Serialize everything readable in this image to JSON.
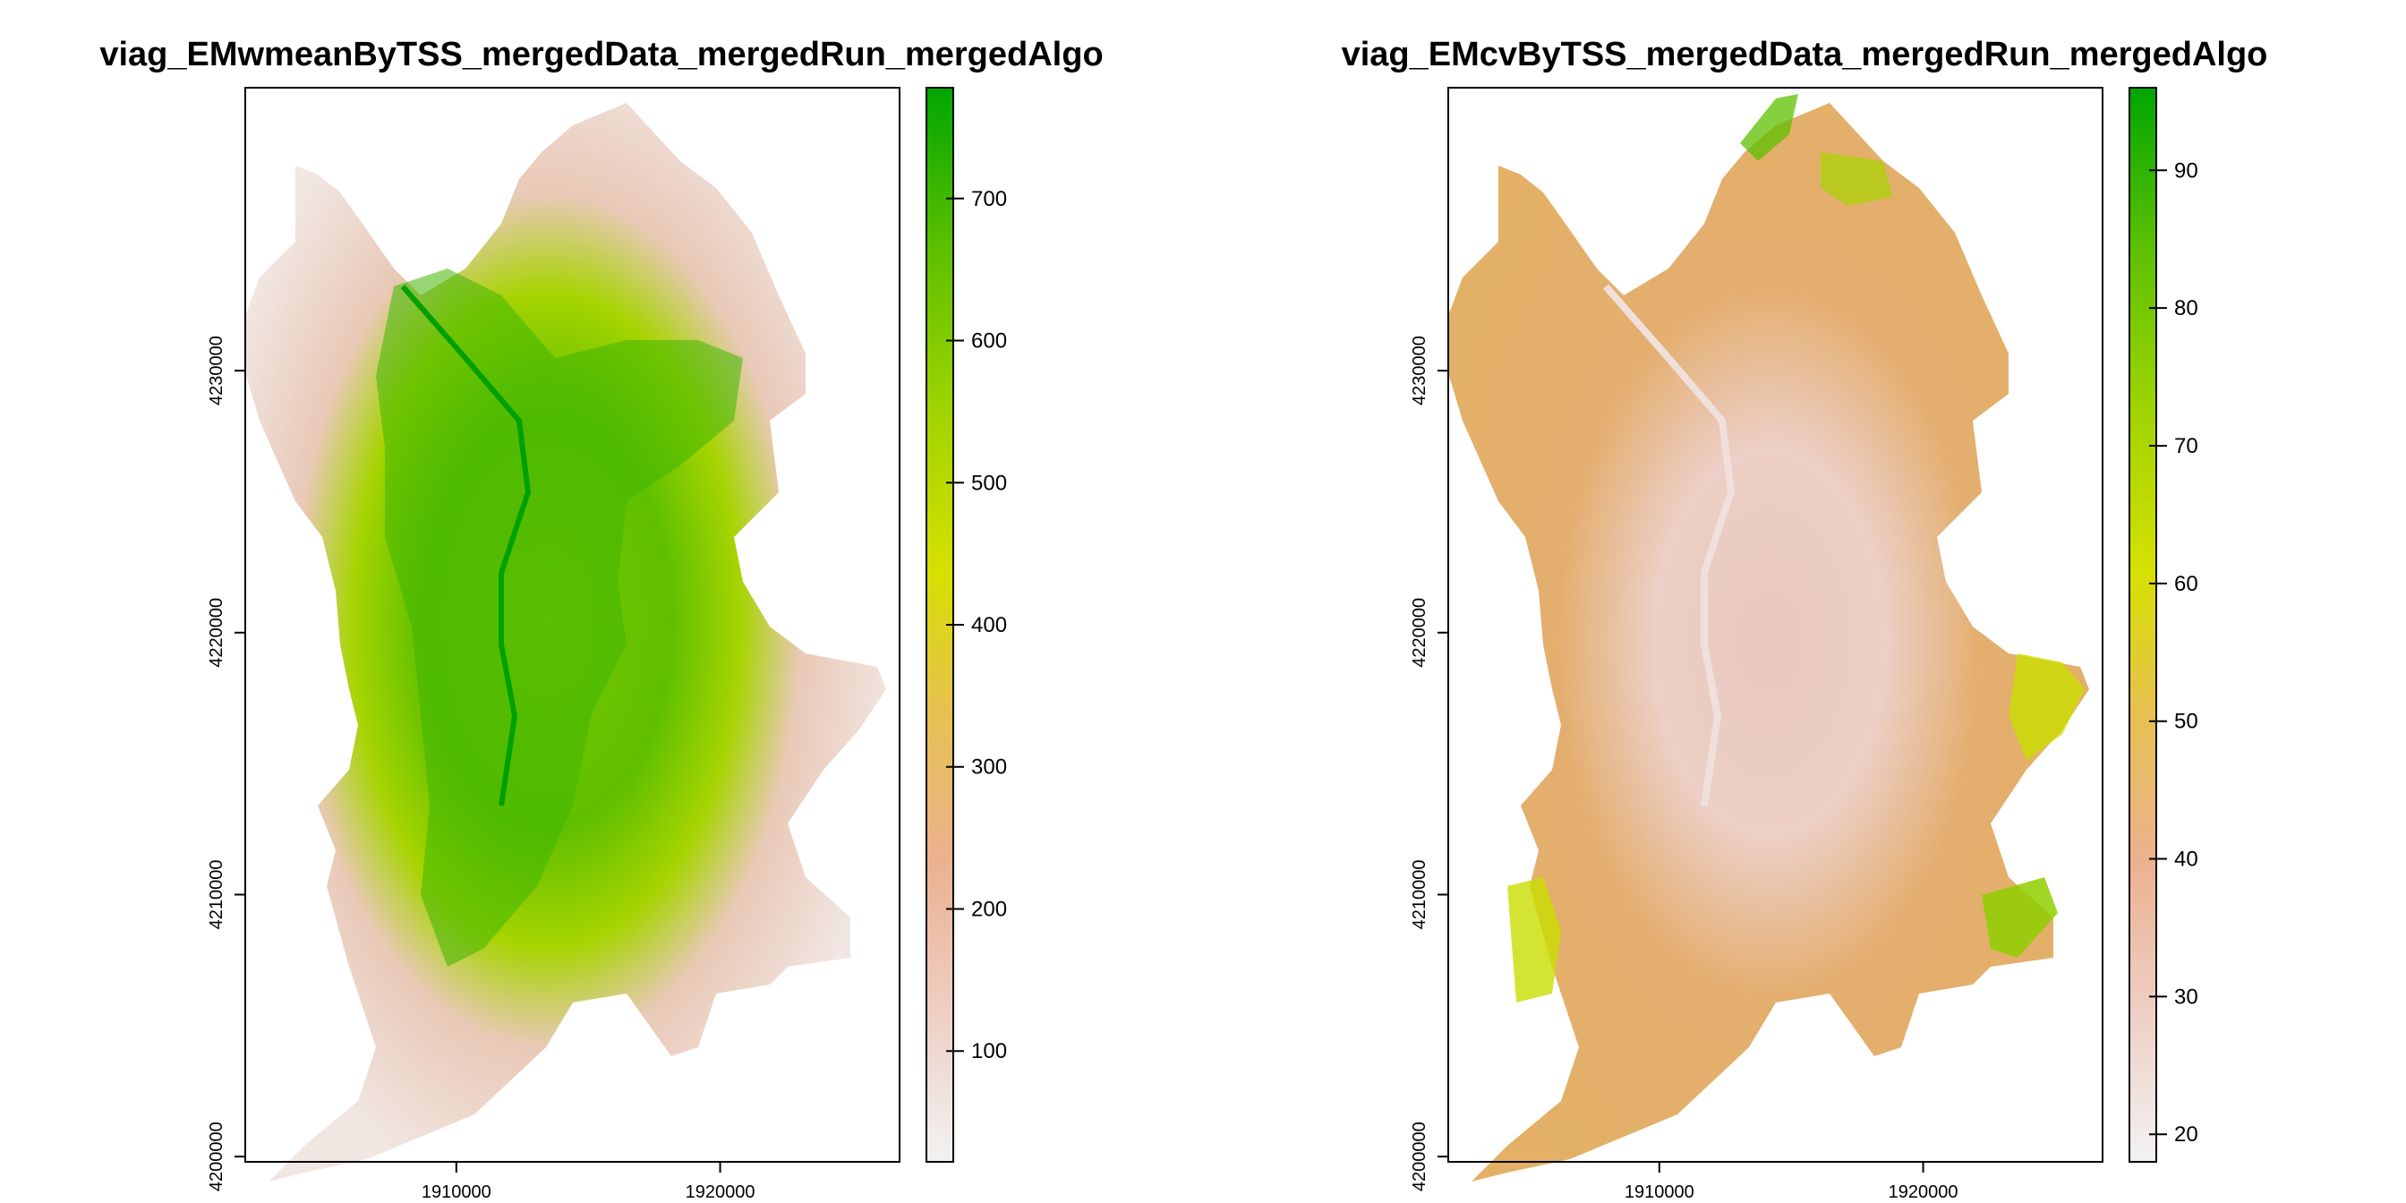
{
  "maps": [
    {
      "title": "viag_EMwmeanByTSS_mergedData_mergedRun_mergedAlgo",
      "x_ticks": [
        "1910000",
        "1920000"
      ],
      "y_ticks": [
        "4200000",
        "4210000",
        "4220000",
        "4230000"
      ],
      "legend_ticks": [
        "100",
        "200",
        "300",
        "400",
        "500",
        "600",
        "700"
      ],
      "legend_range": [
        22,
        778
      ]
    },
    {
      "title": "viag_EMcvByTSS_mergedData_mergedRun_mergedAlgo",
      "x_ticks": [
        "1910000",
        "1920000"
      ],
      "y_ticks": [
        "4200000",
        "4210000",
        "4220000",
        "4230000"
      ],
      "legend_ticks": [
        "20",
        "30",
        "40",
        "50",
        "60",
        "70",
        "80",
        "90"
      ],
      "legend_range": [
        18,
        96
      ]
    }
  ],
  "axes": {
    "x_range": [
      1902000,
      1926800
    ],
    "y_range": [
      4199800,
      4240800
    ]
  },
  "colors": {
    "ramp": [
      "#f2f2f2",
      "#eecfc4",
      "#ebb18f",
      "#e7c14f",
      "#d6e000",
      "#9fd400",
      "#5dc000",
      "#00a600"
    ],
    "left_dominant": [
      "#efc8b9",
      "#6bc300"
    ],
    "right_dominant": [
      "#e5b06a",
      "#ecccc2"
    ]
  }
}
